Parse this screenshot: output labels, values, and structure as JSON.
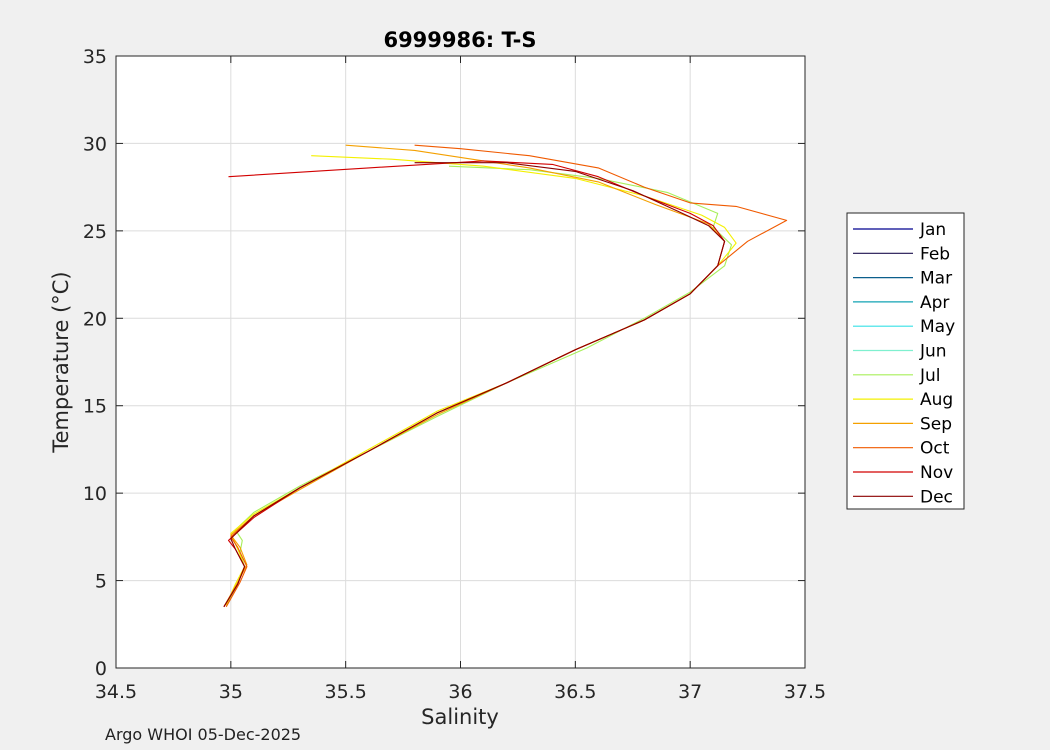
{
  "footer": "Argo WHOI 05-Dec-2025",
  "chart_data": {
    "type": "line",
    "title": "6999986:  T-S",
    "xlabel": "Salinity",
    "ylabel": "Temperature (°C)",
    "xlim": [
      34.5,
      37.5
    ],
    "ylim": [
      0,
      35
    ],
    "xticks": [
      34.5,
      35,
      35.5,
      36,
      36.5,
      37,
      37.5
    ],
    "yticks": [
      0,
      5,
      10,
      15,
      20,
      25,
      30,
      35
    ],
    "grid": true,
    "legend_position": "right",
    "series": [
      {
        "name": "Jan",
        "color": "#00008f",
        "x": [],
        "y": []
      },
      {
        "name": "Feb",
        "color": "#1f1350",
        "x": [],
        "y": []
      },
      {
        "name": "Mar",
        "color": "#0b5f8c",
        "x": [],
        "y": []
      },
      {
        "name": "Apr",
        "color": "#12a3b4",
        "x": [],
        "y": []
      },
      {
        "name": "May",
        "color": "#36e0e6",
        "x": [],
        "y": []
      },
      {
        "name": "Jun",
        "color": "#7ff0cf",
        "x": [],
        "y": []
      },
      {
        "name": "Jul",
        "color": "#a8ef5a",
        "x": [
          34.98,
          35.03,
          35.06,
          35.04,
          35.05,
          35.02,
          35.1,
          35.3,
          35.6,
          35.9,
          36.2,
          36.55,
          36.8,
          37.0,
          37.15,
          37.18,
          37.1,
          37.12,
          36.9,
          36.6,
          36.3,
          35.95
        ],
        "y": [
          3.6,
          4.8,
          5.8,
          6.6,
          7.3,
          7.9,
          8.9,
          10.4,
          12.4,
          14.4,
          16.3,
          18.3,
          20.0,
          21.5,
          23.0,
          24.2,
          25.2,
          26.0,
          27.2,
          28.0,
          28.5,
          28.7
        ]
      },
      {
        "name": "Aug",
        "color": "#f4f000",
        "x": [
          34.98,
          35.02,
          35.06,
          35.03,
          35.0,
          35.1,
          35.3,
          35.6,
          35.9,
          36.2,
          36.5,
          36.8,
          37.0,
          37.12,
          37.2,
          37.15,
          37.05,
          36.8,
          36.5,
          36.1,
          35.7,
          35.35
        ],
        "y": [
          3.6,
          4.8,
          5.8,
          6.8,
          7.7,
          8.8,
          10.3,
          12.5,
          14.7,
          16.3,
          18.2,
          19.9,
          21.4,
          23.0,
          24.3,
          25.2,
          25.9,
          27.0,
          28.0,
          28.7,
          29.1,
          29.3
        ]
      },
      {
        "name": "Sep",
        "color": "#f4a000",
        "x": [
          34.97,
          35.03,
          35.07,
          35.04,
          35.0,
          35.1,
          35.3,
          35.6,
          35.9,
          36.2,
          36.5,
          36.8,
          37.0,
          37.12,
          37.15,
          37.08,
          36.85,
          36.6,
          36.3,
          36.0,
          35.8,
          35.5
        ],
        "y": [
          3.5,
          4.9,
          5.9,
          6.9,
          7.6,
          8.7,
          10.2,
          12.4,
          14.5,
          16.3,
          18.2,
          19.9,
          21.4,
          23.0,
          24.4,
          25.4,
          26.5,
          27.8,
          28.6,
          29.2,
          29.6,
          29.9
        ]
      },
      {
        "name": "Oct",
        "color": "#f05a00",
        "x": [
          34.98,
          35.04,
          35.07,
          35.03,
          35.0,
          35.1,
          35.3,
          35.6,
          35.9,
          36.2,
          36.5,
          36.8,
          37.0,
          37.12,
          37.25,
          37.42,
          37.2,
          37.0,
          36.8,
          36.6,
          36.3,
          36.0,
          35.8
        ],
        "y": [
          3.5,
          4.9,
          5.8,
          6.9,
          7.5,
          8.7,
          10.3,
          12.4,
          14.6,
          16.3,
          18.2,
          19.9,
          21.4,
          23.0,
          24.4,
          25.6,
          26.4,
          26.6,
          27.5,
          28.6,
          29.3,
          29.7,
          29.9
        ]
      },
      {
        "name": "Nov",
        "color": "#d20000",
        "x": [
          34.97,
          35.03,
          35.06,
          35.02,
          34.99,
          35.1,
          35.3,
          35.6,
          35.9,
          36.2,
          36.5,
          36.8,
          37.0,
          37.12,
          37.15,
          37.1,
          37.0,
          36.8,
          36.6,
          36.4,
          36.1,
          35.6,
          34.99
        ],
        "y": [
          3.5,
          4.8,
          5.8,
          6.8,
          7.3,
          8.6,
          10.3,
          12.4,
          14.6,
          16.3,
          18.2,
          19.9,
          21.4,
          23.0,
          24.4,
          25.3,
          26.0,
          27.0,
          28.1,
          28.8,
          29.0,
          28.6,
          28.1
        ]
      },
      {
        "name": "Dec",
        "color": "#8b0000",
        "x": [
          34.97,
          35.03,
          35.06,
          35.02,
          35.0,
          35.1,
          35.3,
          35.6,
          35.9,
          36.2,
          36.5,
          36.8,
          37.0,
          37.12,
          37.15,
          37.08,
          36.95,
          36.75,
          36.5,
          36.2,
          35.8
        ],
        "y": [
          3.5,
          4.8,
          5.8,
          6.8,
          7.4,
          8.7,
          10.3,
          12.4,
          14.6,
          16.3,
          18.2,
          19.9,
          21.4,
          23.0,
          24.4,
          25.3,
          26.1,
          27.3,
          28.4,
          28.9,
          28.9
        ]
      }
    ]
  }
}
